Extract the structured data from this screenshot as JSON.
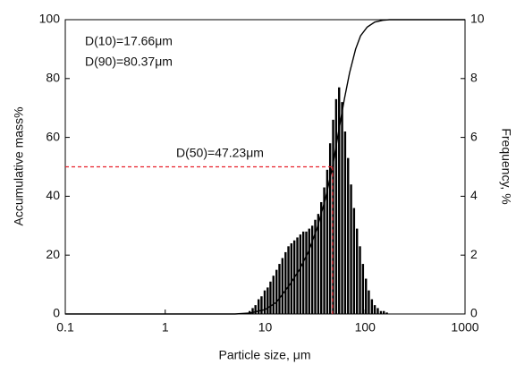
{
  "chart_data": {
    "type": "combo",
    "xlabel": "Particle size, μm",
    "ylabel": "Accumulative mass%",
    "y2label": "Frequency, %",
    "xscale": "log",
    "xlim": [
      0.1,
      1000
    ],
    "xticks": [
      0.1,
      1,
      10,
      100,
      1000
    ],
    "ylim": [
      0,
      100
    ],
    "yticks": [
      0,
      20,
      40,
      60,
      80,
      100
    ],
    "y2lim": [
      0,
      10
    ],
    "y2ticks": [
      0,
      2,
      4,
      6,
      8,
      10
    ],
    "series": [
      {
        "type": "bar",
        "axis": "y2",
        "color": "#000000",
        "x": [
          7.0,
          7.5,
          8.0,
          8.6,
          9.2,
          9.9,
          10.6,
          11.3,
          12.1,
          13.0,
          13.9,
          14.9,
          16.0,
          17.1,
          18.3,
          19.6,
          21.0,
          22.5,
          24.1,
          25.8,
          27.6,
          29.6,
          31.7,
          34.0,
          36.4,
          39.0,
          41.8,
          44.7,
          47.9,
          51.3,
          55.0,
          58.9,
          63.1,
          67.6,
          72.4,
          77.5,
          83.0,
          88.9,
          95.2,
          102,
          109,
          117,
          125,
          134,
          144,
          154,
          165
        ],
        "values": [
          0.1,
          0.2,
          0.3,
          0.5,
          0.6,
          0.8,
          0.9,
          1.1,
          1.3,
          1.5,
          1.7,
          1.9,
          2.1,
          2.3,
          2.4,
          2.5,
          2.6,
          2.7,
          2.8,
          2.8,
          2.9,
          3.0,
          3.2,
          3.4,
          3.8,
          4.3,
          4.9,
          5.8,
          6.6,
          7.3,
          7.7,
          7.2,
          6.2,
          5.3,
          4.4,
          3.6,
          2.9,
          2.3,
          1.7,
          1.2,
          0.8,
          0.5,
          0.3,
          0.2,
          0.1,
          0.1,
          0.05
        ]
      },
      {
        "type": "line",
        "color": "#000000",
        "x": [
          0.1,
          5,
          7,
          10,
          13,
          17.66,
          22,
          27,
          33,
          40,
          47.23,
          55,
          62,
          70,
          80.37,
          90,
          105,
          125,
          150,
          175,
          1000
        ],
        "values": [
          0,
          0,
          0.3,
          1.5,
          4,
          10,
          15,
          21,
          29,
          39,
          50,
          63,
          73,
          82,
          90,
          94.5,
          97.5,
          99.2,
          99.8,
          100,
          100
        ]
      }
    ],
    "reference": {
      "x": 47.23,
      "y": 50,
      "color": "#e8202a"
    },
    "annotations": [
      "D(10)=17.66μm",
      "D(90)=80.37μm",
      "D(50)=47.23μm"
    ]
  }
}
